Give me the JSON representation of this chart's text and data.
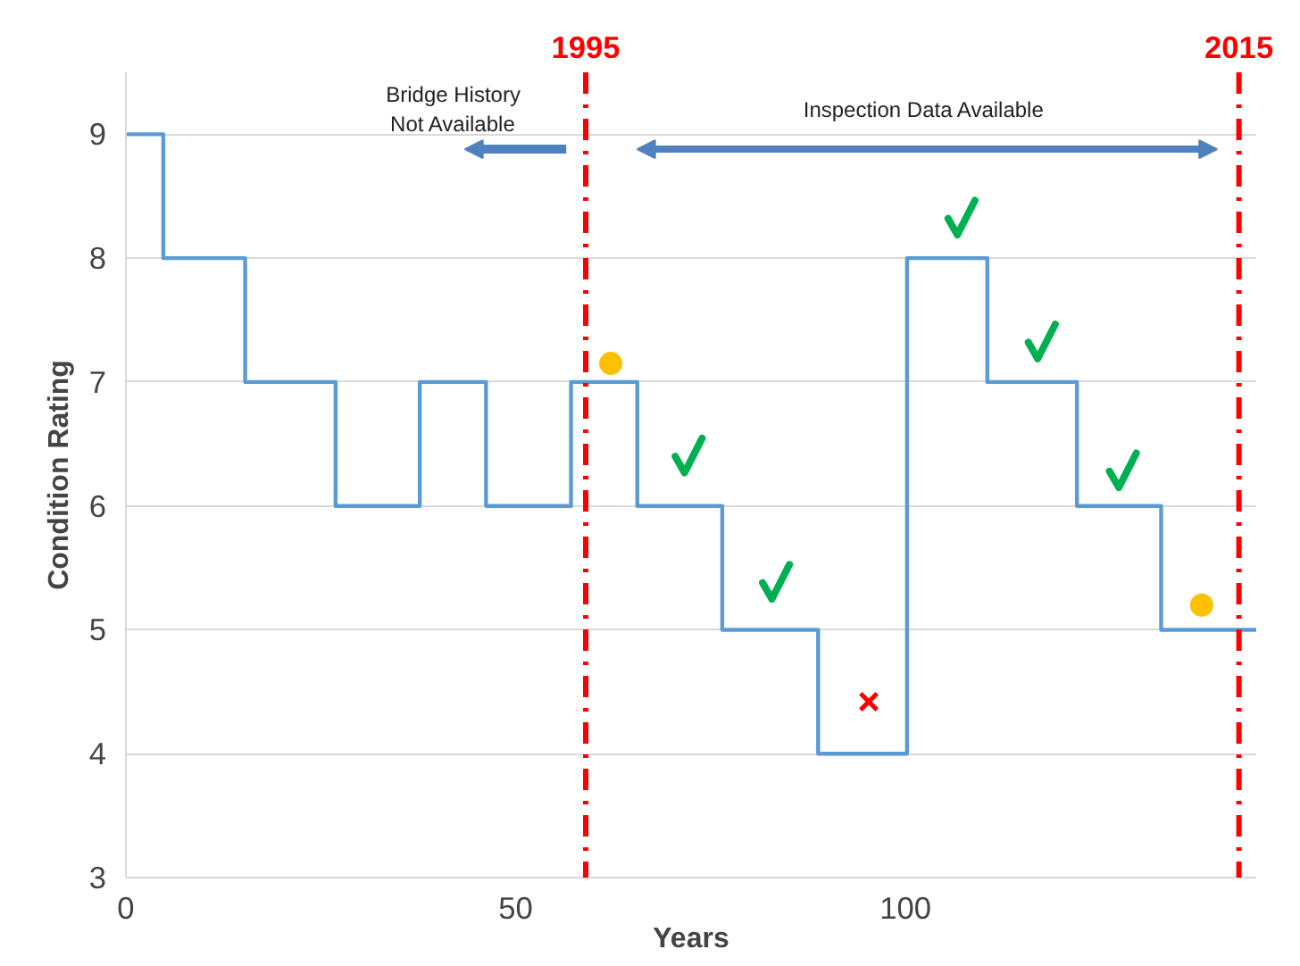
{
  "chart_data": {
    "type": "step",
    "xlabel": "Years",
    "ylabel": "Condition Rating",
    "xlim": [
      0,
      145
    ],
    "xticks": [
      0,
      50,
      100
    ],
    "ylim": [
      3,
      9.5
    ],
    "yticks": [
      3,
      4,
      5,
      6,
      7,
      8,
      9
    ],
    "grid": "y",
    "x2lim": [
      1980.92,
      2015.53
    ],
    "x2ticks": [
      1995,
      2015
    ],
    "series": [
      {
        "color": "#5b9bd5",
        "x": [
          0,
          4.8,
          15.3,
          26.9,
          37.7,
          46.2,
          57.1,
          65.6,
          76.5,
          88.8,
          100.2,
          110.5,
          122,
          132.8,
          145
        ],
        "values": [
          9,
          8,
          7,
          6,
          7,
          6,
          7,
          6,
          5,
          4,
          8,
          7,
          6,
          5,
          5
        ]
      },
      {
        "type": "scatter",
        "marker": "circle",
        "color": "#ffc000",
        "x": [
          62.2,
          138
        ],
        "values": [
          7.15,
          5.2
        ]
      },
      {
        "type": "scatter",
        "marker": "cross",
        "color": "#ff0000",
        "x": [
          95.3
        ],
        "values": [
          4.42
        ]
      },
      {
        "type": "scatter",
        "color": "#00b050",
        "x": [
          72.1,
          83.3,
          107.1,
          117.4,
          127.8
        ],
        "values": [
          6.4,
          5.38,
          8.32,
          7.32,
          6.28
        ]
      }
    ],
    "ref_lines": [
      {
        "axis": "x2",
        "value": 1995,
        "color": "#ff0000",
        "line_style": "dashdot"
      },
      {
        "axis": "x2",
        "value": 2015,
        "color": "#ff0000",
        "line_style": "dashdot"
      }
    ],
    "annotations": [
      "Bridge History\nNot Available",
      "Inspection Data Available"
    ]
  }
}
